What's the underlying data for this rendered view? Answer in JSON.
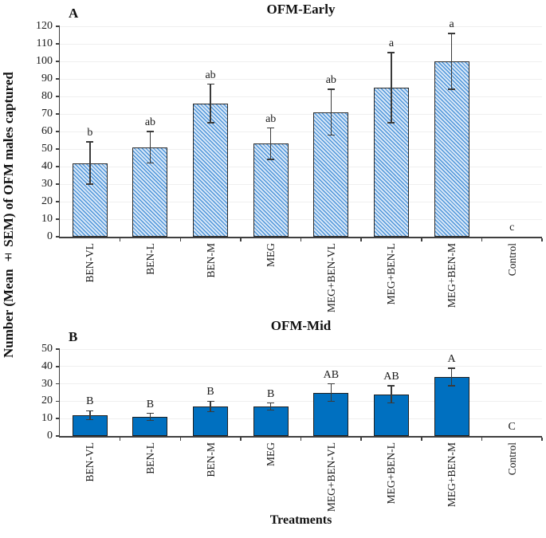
{
  "figure": {
    "ylabel": "Number (Mean ± SEM) of OFM males captured",
    "xlabel": "Treatments"
  },
  "chart_data": [
    {
      "type": "bar",
      "panel": "A",
      "title": "OFM-Early",
      "categories": [
        "BEN-VL",
        "BEN-L",
        "BEN-M",
        "MEG",
        "MEG+BEN-VL",
        "MEG+BEN-L",
        "MEG+BEN-M",
        "Control"
      ],
      "values": [
        42,
        51,
        76,
        53,
        71,
        85,
        100,
        0
      ],
      "sems": [
        12,
        9,
        11,
        9,
        13,
        20,
        16,
        0
      ],
      "sig_letters": [
        "b",
        "ab",
        "ab",
        "ab",
        "ab",
        "a",
        "a",
        "c"
      ],
      "ylim": [
        0,
        120
      ],
      "yticks": [
        0,
        10,
        20,
        30,
        40,
        50,
        60,
        70,
        80,
        90,
        100,
        110,
        120
      ],
      "grid": "horizontal-faint",
      "legend": "none",
      "bar_style": "hatched",
      "colors": {
        "hatch_fg": "#4e95d9",
        "hatch_bg": "#d7e7f8",
        "border": "#2b2b2b"
      }
    },
    {
      "type": "bar",
      "panel": "B",
      "title": "OFM-Mid",
      "categories": [
        "BEN-VL",
        "BEN-L",
        "BEN-M",
        "MEG",
        "MEG+BEN-VL",
        "MEG+BEN-L",
        "MEG+BEN-M",
        "Control"
      ],
      "values": [
        12,
        11,
        17,
        17,
        25,
        24,
        34,
        0
      ],
      "sems": [
        2.5,
        2,
        3,
        2,
        5,
        5,
        5,
        0
      ],
      "sig_letters": [
        "B",
        "B",
        "B",
        "B",
        "AB",
        "AB",
        "A",
        "C"
      ],
      "ylim": [
        0,
        50
      ],
      "yticks": [
        0,
        10,
        20,
        30,
        40,
        50
      ],
      "grid": "horizontal-faint",
      "legend": "none",
      "bar_style": "solid",
      "colors": {
        "fill": "#0070c0",
        "border": "#1f1f1f"
      }
    }
  ]
}
